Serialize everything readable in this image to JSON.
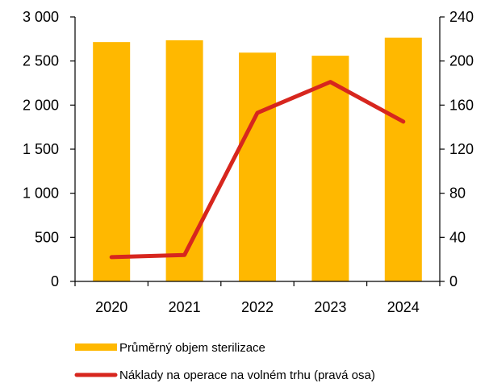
{
  "chart_data": {
    "type": "bar+line",
    "categories": [
      "2020",
      "2021",
      "2022",
      "2023",
      "2024"
    ],
    "series": [
      {
        "name": "Průměrný objem sterilizace",
        "type": "bar",
        "axis": "left",
        "color": "#FFB800",
        "values": [
          2715,
          2735,
          2595,
          2560,
          2765
        ]
      },
      {
        "name": "Náklady na operace na volném trhu (pravá osa)",
        "type": "line",
        "axis": "right",
        "color": "#D7261E",
        "values": [
          22,
          24,
          153,
          181,
          145
        ]
      }
    ],
    "y_left": {
      "min": 0,
      "max": 3000,
      "ticks": [
        0,
        500,
        1000,
        1500,
        2000,
        2500,
        3000
      ],
      "tick_labels": [
        "0",
        "500",
        "1 000",
        "1 500",
        "2 000",
        "2 500",
        "3 000"
      ]
    },
    "y_right": {
      "min": 0,
      "max": 240,
      "ticks": [
        0,
        40,
        80,
        120,
        160,
        200,
        240
      ],
      "tick_labels": [
        "0",
        "40",
        "80",
        "120",
        "160",
        "200",
        "240"
      ]
    },
    "grid": false,
    "legend_position": "bottom-left"
  }
}
